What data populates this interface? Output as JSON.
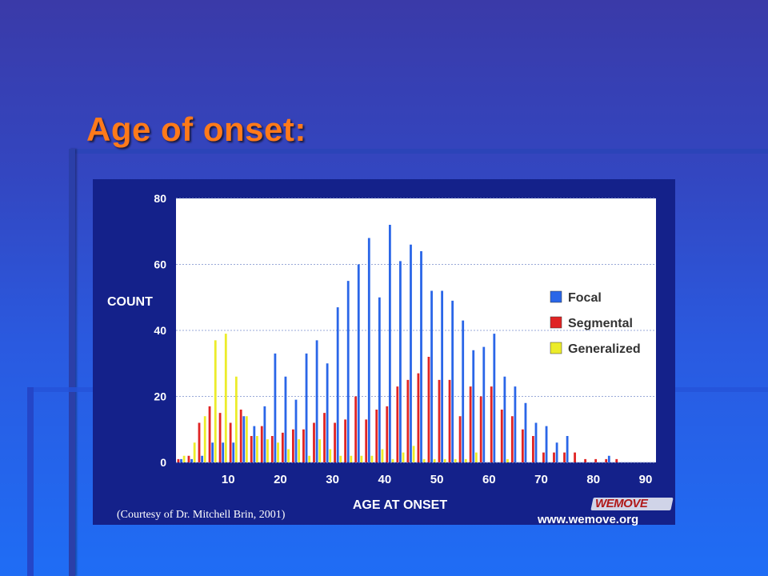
{
  "slide": {
    "title": "Age of onset:"
  },
  "footer": {
    "credit": "(Courtesy of Dr. Mitchell Brin, 2001)",
    "logo_text": "WEMOVE",
    "url": "www.wemove.org"
  },
  "chart_data": {
    "type": "bar",
    "title": "",
    "xlabel": "AGE AT ONSET",
    "ylabel": "COUNT",
    "xlim": [
      0,
      92
    ],
    "ylim": [
      0,
      80
    ],
    "xticks": [
      10,
      20,
      30,
      40,
      50,
      60,
      70,
      80,
      90
    ],
    "yticks": [
      0,
      20,
      40,
      60,
      80
    ],
    "grid": true,
    "legend": "right",
    "x": [
      1,
      3,
      5,
      7,
      9,
      11,
      13,
      15,
      17,
      19,
      21,
      23,
      25,
      27,
      29,
      31,
      33,
      35,
      37,
      39,
      41,
      43,
      45,
      47,
      49,
      51,
      53,
      55,
      57,
      59,
      61,
      63,
      65,
      67,
      69,
      71,
      73,
      75,
      77,
      79,
      81,
      83,
      85,
      87,
      89
    ],
    "series": [
      {
        "name": "Focal",
        "color": "#2a66e8",
        "values": [
          1,
          1,
          2,
          6,
          6,
          6,
          14,
          11,
          17,
          33,
          26,
          19,
          33,
          37,
          30,
          47,
          55,
          60,
          68,
          50,
          72,
          61,
          66,
          64,
          52,
          52,
          49,
          43,
          34,
          35,
          39,
          26,
          23,
          18,
          12,
          11,
          6,
          8,
          0,
          0,
          0,
          2,
          0,
          0,
          0
        ]
      },
      {
        "name": "Segmental",
        "color": "#e02424",
        "values": [
          1,
          2,
          12,
          17,
          15,
          12,
          16,
          8,
          11,
          8,
          9,
          10,
          10,
          12,
          15,
          12,
          13,
          20,
          13,
          16,
          17,
          23,
          25,
          27,
          32,
          25,
          25,
          14,
          23,
          20,
          23,
          16,
          14,
          10,
          8,
          3,
          3,
          3,
          3,
          1,
          1,
          1,
          1,
          0,
          0
        ]
      },
      {
        "name": "Generalized",
        "color": "#ecec2a",
        "values": [
          2,
          6,
          14,
          37,
          39,
          26,
          14,
          8,
          7,
          6,
          4,
          7,
          2,
          7,
          4,
          2,
          2,
          2,
          2,
          4,
          1,
          3,
          5,
          1,
          1,
          1,
          1,
          1,
          3,
          0,
          0,
          1,
          0,
          0,
          0,
          0,
          0,
          0,
          0,
          0,
          0,
          0,
          0,
          0,
          0
        ]
      }
    ]
  }
}
